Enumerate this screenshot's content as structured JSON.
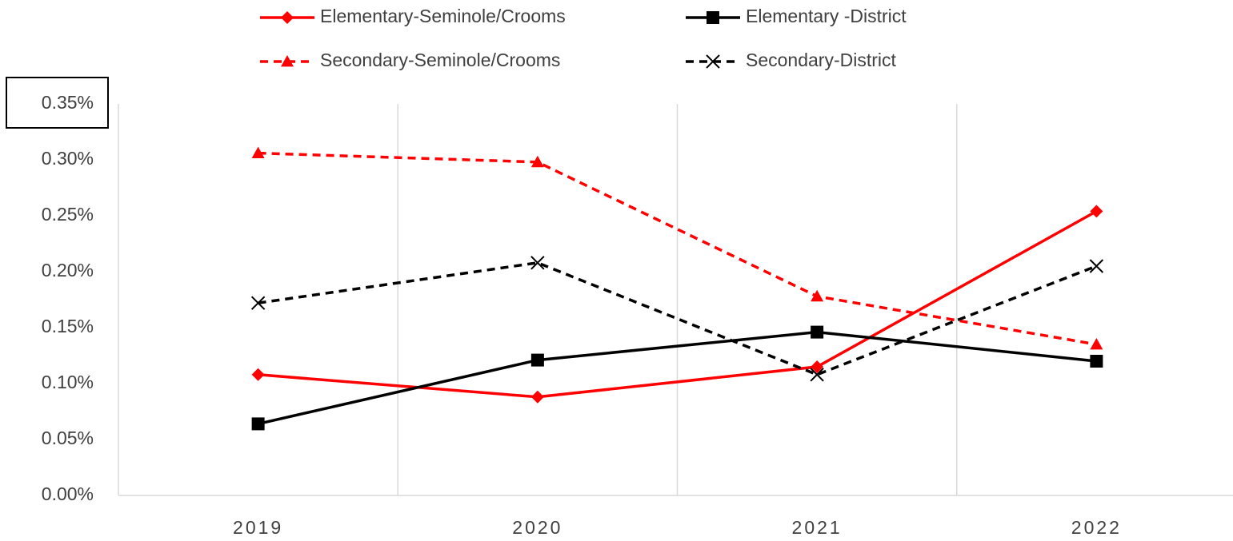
{
  "chart_data": {
    "type": "line",
    "categories": [
      "2019",
      "2020",
      "2021",
      "2022"
    ],
    "series": [
      {
        "name": "Elementary-Seminole/Crooms",
        "color": "#ff0000",
        "dashed": false,
        "marker": "diamond",
        "values": [
          0.108,
          0.088,
          0.115,
          0.254
        ]
      },
      {
        "name": "Elementary -District",
        "color": "#000000",
        "dashed": false,
        "marker": "square",
        "values": [
          0.064,
          0.121,
          0.146,
          0.12
        ]
      },
      {
        "name": "Secondary-Seminole/Crooms",
        "color": "#ff0000",
        "dashed": true,
        "marker": "triangle",
        "values": [
          0.306,
          0.298,
          0.178,
          0.135
        ]
      },
      {
        "name": "Secondary-District",
        "color": "#000000",
        "dashed": true,
        "marker": "x",
        "values": [
          0.172,
          0.208,
          0.108,
          0.205
        ]
      }
    ],
    "ylim": [
      0,
      0.35
    ],
    "yticks": [
      {
        "value": 0,
        "label": "0.00%"
      },
      {
        "value": 0.05,
        "label": "0.05%"
      },
      {
        "value": 0.1,
        "label": "0.10%"
      },
      {
        "value": 0.15,
        "label": "0.15%"
      },
      {
        "value": 0.2,
        "label": "0.20%"
      },
      {
        "value": 0.25,
        "label": "0.25%"
      },
      {
        "value": 0.3,
        "label": "0.30%"
      },
      {
        "value": 0.35,
        "label": "0.35%"
      }
    ]
  }
}
